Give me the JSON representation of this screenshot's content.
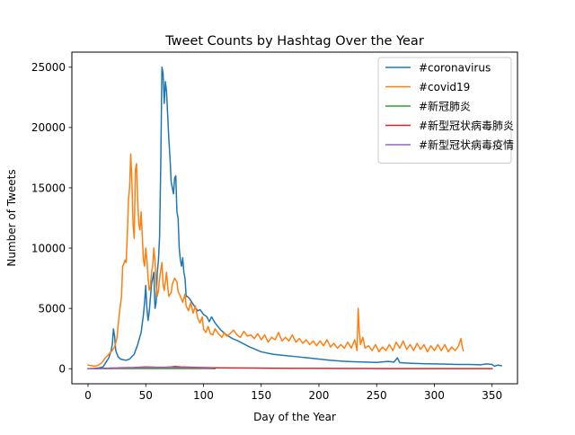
{
  "chart_data": {
    "type": "line",
    "title": "Tweet Counts by Hashtag Over the Year",
    "xlabel": "Day of the Year",
    "ylabel": "Number of Tweets",
    "xlim": [
      -14,
      372
    ],
    "ylim": [
      -1250,
      26250
    ],
    "xticks": [
      0,
      50,
      100,
      150,
      200,
      250,
      300,
      350
    ],
    "yticks": [
      0,
      5000,
      10000,
      15000,
      20000,
      25000
    ],
    "grid": false,
    "legend_position": "top-right",
    "series": [
      {
        "name": "#coronavirus",
        "color": "#1f77b4",
        "points": [
          [
            0,
            0
          ],
          [
            5,
            20
          ],
          [
            10,
            80
          ],
          [
            13,
            150
          ],
          [
            16,
            600
          ],
          [
            18,
            900
          ],
          [
            20,
            1500
          ],
          [
            21,
            2000
          ],
          [
            22,
            3300
          ],
          [
            23,
            2700
          ],
          [
            24,
            1500
          ],
          [
            26,
            1000
          ],
          [
            28,
            800
          ],
          [
            30,
            750
          ],
          [
            33,
            700
          ],
          [
            36,
            800
          ],
          [
            40,
            1200
          ],
          [
            43,
            2000
          ],
          [
            46,
            3000
          ],
          [
            48,
            4500
          ],
          [
            49,
            5500
          ],
          [
            50,
            6900
          ],
          [
            51,
            5000
          ],
          [
            52,
            4000
          ],
          [
            53,
            4700
          ],
          [
            55,
            7000
          ],
          [
            57,
            8000
          ],
          [
            58,
            5000
          ],
          [
            59,
            5500
          ],
          [
            60,
            8000
          ],
          [
            61,
            9000
          ],
          [
            62,
            11000
          ],
          [
            63,
            17000
          ],
          [
            64,
            25000
          ],
          [
            65,
            24500
          ],
          [
            66,
            22000
          ],
          [
            67,
            23800
          ],
          [
            68,
            23000
          ],
          [
            69,
            21000
          ],
          [
            70,
            19000
          ],
          [
            71,
            17500
          ],
          [
            72,
            15500
          ],
          [
            73,
            15000
          ],
          [
            74,
            14500
          ],
          [
            75,
            15800
          ],
          [
            76,
            16000
          ],
          [
            77,
            13000
          ],
          [
            78,
            12500
          ],
          [
            79,
            10000
          ],
          [
            80,
            9000
          ],
          [
            81,
            8500
          ],
          [
            82,
            9200
          ],
          [
            83,
            8000
          ],
          [
            84,
            7500
          ],
          [
            85,
            6000
          ],
          [
            86,
            6000
          ],
          [
            88,
            5800
          ],
          [
            90,
            5500
          ],
          [
            92,
            5200
          ],
          [
            95,
            4800
          ],
          [
            97,
            4900
          ],
          [
            100,
            4500
          ],
          [
            103,
            4300
          ],
          [
            105,
            3900
          ],
          [
            107,
            4300
          ],
          [
            110,
            3800
          ],
          [
            115,
            3200
          ],
          [
            120,
            2800
          ],
          [
            125,
            2500
          ],
          [
            130,
            2300
          ],
          [
            140,
            1800
          ],
          [
            150,
            1400
          ],
          [
            160,
            1200
          ],
          [
            170,
            1100
          ],
          [
            180,
            1000
          ],
          [
            190,
            900
          ],
          [
            200,
            800
          ],
          [
            210,
            700
          ],
          [
            220,
            620
          ],
          [
            230,
            580
          ],
          [
            240,
            550
          ],
          [
            250,
            520
          ],
          [
            260,
            600
          ],
          [
            265,
            550
          ],
          [
            268,
            900
          ],
          [
            270,
            500
          ],
          [
            280,
            450
          ],
          [
            290,
            420
          ],
          [
            300,
            400
          ],
          [
            310,
            380
          ],
          [
            320,
            350
          ],
          [
            330,
            350
          ],
          [
            340,
            320
          ],
          [
            345,
            400
          ],
          [
            350,
            350
          ],
          [
            352,
            200
          ],
          [
            355,
            300
          ],
          [
            358,
            250
          ]
        ]
      },
      {
        "name": "#covid19",
        "color": "#ff7f0e",
        "points": [
          [
            0,
            300
          ],
          [
            3,
            250
          ],
          [
            6,
            200
          ],
          [
            9,
            300
          ],
          [
            12,
            500
          ],
          [
            15,
            900
          ],
          [
            18,
            1200
          ],
          [
            20,
            1400
          ],
          [
            23,
            1800
          ],
          [
            25,
            2500
          ],
          [
            27,
            4500
          ],
          [
            29,
            6000
          ],
          [
            30,
            8500
          ],
          [
            31,
            8700
          ],
          [
            32,
            9000
          ],
          [
            33,
            8800
          ],
          [
            34,
            11000
          ],
          [
            35,
            14000
          ],
          [
            36,
            15000
          ],
          [
            37,
            17800
          ],
          [
            38,
            15500
          ],
          [
            39,
            12000
          ],
          [
            40,
            10800
          ],
          [
            41,
            16500
          ],
          [
            42,
            17000
          ],
          [
            43,
            14000
          ],
          [
            44,
            12000
          ],
          [
            45,
            11500
          ],
          [
            46,
            13000
          ],
          [
            47,
            11000
          ],
          [
            48,
            9000
          ],
          [
            49,
            8500
          ],
          [
            50,
            10000
          ],
          [
            51,
            9000
          ],
          [
            52,
            7500
          ],
          [
            53,
            6500
          ],
          [
            54,
            6800
          ],
          [
            55,
            8000
          ],
          [
            56,
            8500
          ],
          [
            57,
            10000
          ],
          [
            58,
            9000
          ],
          [
            59,
            7000
          ],
          [
            60,
            6000
          ],
          [
            61,
            6500
          ],
          [
            62,
            7500
          ],
          [
            63,
            8200
          ],
          [
            64,
            8800
          ],
          [
            65,
            7000
          ],
          [
            66,
            6500
          ],
          [
            67,
            7200
          ],
          [
            68,
            8000
          ],
          [
            69,
            6800
          ],
          [
            70,
            6000
          ],
          [
            72,
            6300
          ],
          [
            73,
            7000
          ],
          [
            75,
            7500
          ],
          [
            77,
            7200
          ],
          [
            78,
            6400
          ],
          [
            80,
            6000
          ],
          [
            82,
            5500
          ],
          [
            84,
            6200
          ],
          [
            85,
            5200
          ],
          [
            87,
            4800
          ],
          [
            89,
            5500
          ],
          [
            91,
            4600
          ],
          [
            93,
            5200
          ],
          [
            95,
            4200
          ],
          [
            97,
            3800
          ],
          [
            99,
            4300
          ],
          [
            100,
            3300
          ],
          [
            102,
            3000
          ],
          [
            104,
            3500
          ],
          [
            106,
            2900
          ],
          [
            108,
            2800
          ],
          [
            110,
            3300
          ],
          [
            113,
            2900
          ],
          [
            116,
            2600
          ],
          [
            118,
            3000
          ],
          [
            120,
            2700
          ],
          [
            123,
            2900
          ],
          [
            126,
            3200
          ],
          [
            129,
            2800
          ],
          [
            132,
            2600
          ],
          [
            135,
            3100
          ],
          [
            138,
            2700
          ],
          [
            141,
            2800
          ],
          [
            144,
            2500
          ],
          [
            147,
            2900
          ],
          [
            150,
            2400
          ],
          [
            153,
            2800
          ],
          [
            156,
            2200
          ],
          [
            159,
            2600
          ],
          [
            162,
            2400
          ],
          [
            165,
            3000
          ],
          [
            168,
            2300
          ],
          [
            171,
            2600
          ],
          [
            174,
            2300
          ],
          [
            177,
            2800
          ],
          [
            180,
            2200
          ],
          [
            183,
            2500
          ],
          [
            186,
            2100
          ],
          [
            189,
            2400
          ],
          [
            192,
            2000
          ],
          [
            195,
            2300
          ],
          [
            198,
            1900
          ],
          [
            201,
            2300
          ],
          [
            204,
            1900
          ],
          [
            207,
            2400
          ],
          [
            210,
            1800
          ],
          [
            213,
            2100
          ],
          [
            216,
            1700
          ],
          [
            219,
            2000
          ],
          [
            222,
            1700
          ],
          [
            225,
            2200
          ],
          [
            228,
            1700
          ],
          [
            231,
            2400
          ],
          [
            232,
            2000
          ],
          [
            233,
            1500
          ],
          [
            234,
            5000
          ],
          [
            235,
            3000
          ],
          [
            236,
            2000
          ],
          [
            238,
            2600
          ],
          [
            240,
            1700
          ],
          [
            243,
            1900
          ],
          [
            246,
            1500
          ],
          [
            249,
            2000
          ],
          [
            252,
            1400
          ],
          [
            255,
            1800
          ],
          [
            258,
            1500
          ],
          [
            261,
            2000
          ],
          [
            264,
            1500
          ],
          [
            267,
            2200
          ],
          [
            270,
            1700
          ],
          [
            273,
            2300
          ],
          [
            276,
            1600
          ],
          [
            279,
            2000
          ],
          [
            282,
            1500
          ],
          [
            285,
            2100
          ],
          [
            288,
            1600
          ],
          [
            291,
            2000
          ],
          [
            294,
            1400
          ],
          [
            297,
            1900
          ],
          [
            300,
            1500
          ],
          [
            303,
            2000
          ],
          [
            306,
            1500
          ],
          [
            309,
            2000
          ],
          [
            312,
            1400
          ],
          [
            315,
            1800
          ],
          [
            318,
            1500
          ],
          [
            321,
            1900
          ],
          [
            323,
            2500
          ],
          [
            324,
            1900
          ],
          [
            325,
            1500
          ]
        ]
      },
      {
        "name": "#新冠肺炎",
        "color": "#2ca02c",
        "points": [
          [
            0,
            0
          ],
          [
            20,
            10
          ],
          [
            40,
            20
          ],
          [
            60,
            20
          ],
          [
            80,
            20
          ],
          [
            100,
            10
          ],
          [
            110,
            10
          ]
        ]
      },
      {
        "name": "#新型冠状病毒肺炎",
        "color": "#d62728",
        "points": [
          [
            0,
            0
          ],
          [
            10,
            20
          ],
          [
            20,
            50
          ],
          [
            30,
            80
          ],
          [
            40,
            100
          ],
          [
            50,
            150
          ],
          [
            60,
            120
          ],
          [
            70,
            130
          ],
          [
            75,
            180
          ],
          [
            80,
            150
          ],
          [
            90,
            120
          ],
          [
            100,
            90
          ],
          [
            110,
            70
          ],
          [
            120,
            60
          ],
          [
            140,
            50
          ],
          [
            160,
            40
          ],
          [
            180,
            30
          ],
          [
            200,
            30
          ],
          [
            220,
            20
          ],
          [
            240,
            20
          ],
          [
            260,
            10
          ],
          [
            280,
            10
          ],
          [
            300,
            10
          ],
          [
            320,
            10
          ],
          [
            340,
            10
          ],
          [
            350,
            10
          ]
        ]
      },
      {
        "name": "#新型冠状病毒疫情",
        "color": "#9467bd",
        "points": [
          [
            0,
            0
          ],
          [
            10,
            10
          ],
          [
            20,
            30
          ],
          [
            30,
            50
          ],
          [
            40,
            80
          ],
          [
            50,
            100
          ],
          [
            60,
            110
          ],
          [
            65,
            90
          ],
          [
            70,
            140
          ],
          [
            75,
            100
          ],
          [
            80,
            90
          ],
          [
            85,
            80
          ],
          [
            90,
            70
          ],
          [
            95,
            60
          ],
          [
            100,
            40
          ],
          [
            105,
            30
          ],
          [
            108,
            20
          ]
        ]
      }
    ]
  }
}
